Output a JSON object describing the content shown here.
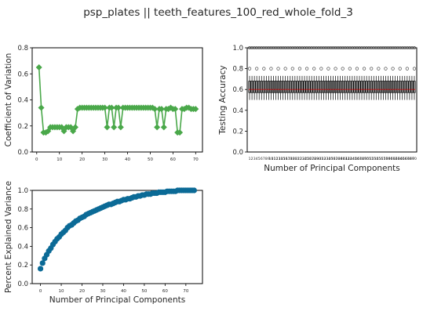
{
  "figure": {
    "suptitle": "psp_plates || teeth_features_100_red_whole_fold_3"
  },
  "colors": {
    "cv": "#4aa84a",
    "box": "#000000",
    "median": "#cc2222",
    "outlier": "#333333",
    "pev": "#0b6a96"
  },
  "chart_data": [
    {
      "id": "cv",
      "type": "line",
      "title": "",
      "xlabel": "",
      "ylabel": "Coefficient of Variation",
      "xlim": [
        -2,
        73
      ],
      "ylim": [
        0,
        0.8
      ],
      "xticks": [
        0,
        10,
        20,
        30,
        40,
        50,
        60,
        70
      ],
      "yticks": [
        0.0,
        0.2,
        0.4,
        0.6,
        0.8
      ],
      "marker": "diamond",
      "x": [
        1,
        2,
        3,
        4,
        5,
        6,
        7,
        8,
        9,
        10,
        11,
        12,
        13,
        14,
        15,
        16,
        17,
        18,
        19,
        20,
        21,
        22,
        23,
        24,
        25,
        26,
        27,
        28,
        29,
        30,
        31,
        32,
        33,
        34,
        35,
        36,
        37,
        38,
        39,
        40,
        41,
        42,
        43,
        44,
        45,
        46,
        47,
        48,
        49,
        50,
        51,
        52,
        53,
        54,
        55,
        56,
        57,
        58,
        59,
        60,
        61,
        62,
        63,
        64,
        65,
        66,
        67,
        68,
        69,
        70
      ],
      "y": [
        0.65,
        0.34,
        0.15,
        0.15,
        0.16,
        0.19,
        0.19,
        0.19,
        0.19,
        0.19,
        0.19,
        0.16,
        0.19,
        0.19,
        0.19,
        0.16,
        0.19,
        0.33,
        0.34,
        0.34,
        0.34,
        0.34,
        0.34,
        0.34,
        0.34,
        0.34,
        0.34,
        0.34,
        0.34,
        0.34,
        0.19,
        0.34,
        0.34,
        0.19,
        0.34,
        0.34,
        0.19,
        0.34,
        0.34,
        0.34,
        0.34,
        0.34,
        0.34,
        0.34,
        0.34,
        0.34,
        0.34,
        0.34,
        0.34,
        0.34,
        0.34,
        0.33,
        0.19,
        0.33,
        0.33,
        0.19,
        0.33,
        0.33,
        0.34,
        0.33,
        0.33,
        0.15,
        0.15,
        0.33,
        0.33,
        0.34,
        0.34,
        0.33,
        0.33,
        0.33
      ]
    },
    {
      "id": "acc",
      "type": "box",
      "title": "",
      "xlabel": "Number of Principal Components",
      "ylabel": "Testing Accuracy",
      "ylim": [
        0,
        1.0
      ],
      "yticks": [
        0.0,
        0.2,
        0.4,
        0.6,
        0.8,
        1.0
      ],
      "categories": [
        "1",
        "2",
        "3",
        "4",
        "5",
        "6",
        "7",
        "8",
        "9",
        "10",
        "11",
        "12",
        "13",
        "14",
        "15",
        "16",
        "17",
        "18",
        "19",
        "20",
        "21",
        "22",
        "23",
        "24",
        "25",
        "26",
        "27",
        "28",
        "29",
        "30",
        "31",
        "32",
        "33",
        "34",
        "35",
        "36",
        "37",
        "38",
        "39",
        "40",
        "41",
        "42",
        "43",
        "44",
        "45",
        "46",
        "47",
        "48",
        "49",
        "50",
        "51",
        "52",
        "53",
        "54",
        "55",
        "56",
        "57",
        "58",
        "59",
        "60",
        "61",
        "62",
        "63",
        "64",
        "65",
        "66",
        "67",
        "68",
        "69",
        "70"
      ],
      "typical_box": {
        "whisker_low": 0.5,
        "q1": 0.57,
        "median": 0.6,
        "q3": 0.68,
        "whisker_high": 0.73
      },
      "outlier_value": 0.8,
      "top_outlier_value": 1.0
    },
    {
      "id": "pev",
      "type": "scatter",
      "title": "",
      "xlabel": "Number of Principal Components",
      "ylabel": "Percent Explained Variance",
      "xlim": [
        -4,
        78
      ],
      "ylim": [
        0,
        1.0
      ],
      "xticks": [
        0,
        10,
        20,
        30,
        40,
        50,
        60,
        70
      ],
      "yticks": [
        0.0,
        0.2,
        0.4,
        0.6,
        0.8,
        1.0
      ],
      "x_start": 0,
      "y": [
        0.16,
        0.22,
        0.27,
        0.31,
        0.35,
        0.38,
        0.42,
        0.45,
        0.48,
        0.5,
        0.53,
        0.55,
        0.57,
        0.6,
        0.62,
        0.63,
        0.65,
        0.67,
        0.68,
        0.7,
        0.71,
        0.72,
        0.74,
        0.75,
        0.76,
        0.77,
        0.78,
        0.79,
        0.8,
        0.81,
        0.82,
        0.83,
        0.84,
        0.85,
        0.85,
        0.86,
        0.87,
        0.88,
        0.88,
        0.89,
        0.9,
        0.9,
        0.91,
        0.91,
        0.92,
        0.93,
        0.93,
        0.94,
        0.94,
        0.95,
        0.95,
        0.96,
        0.96,
        0.96,
        0.97,
        0.97,
        0.97,
        0.98,
        0.98,
        0.98,
        0.98,
        0.99,
        0.99,
        0.99,
        0.99,
        0.99,
        1.0,
        1.0,
        1.0,
        1.0,
        1.0,
        1.0,
        1.0,
        1.0,
        1.0
      ]
    }
  ]
}
